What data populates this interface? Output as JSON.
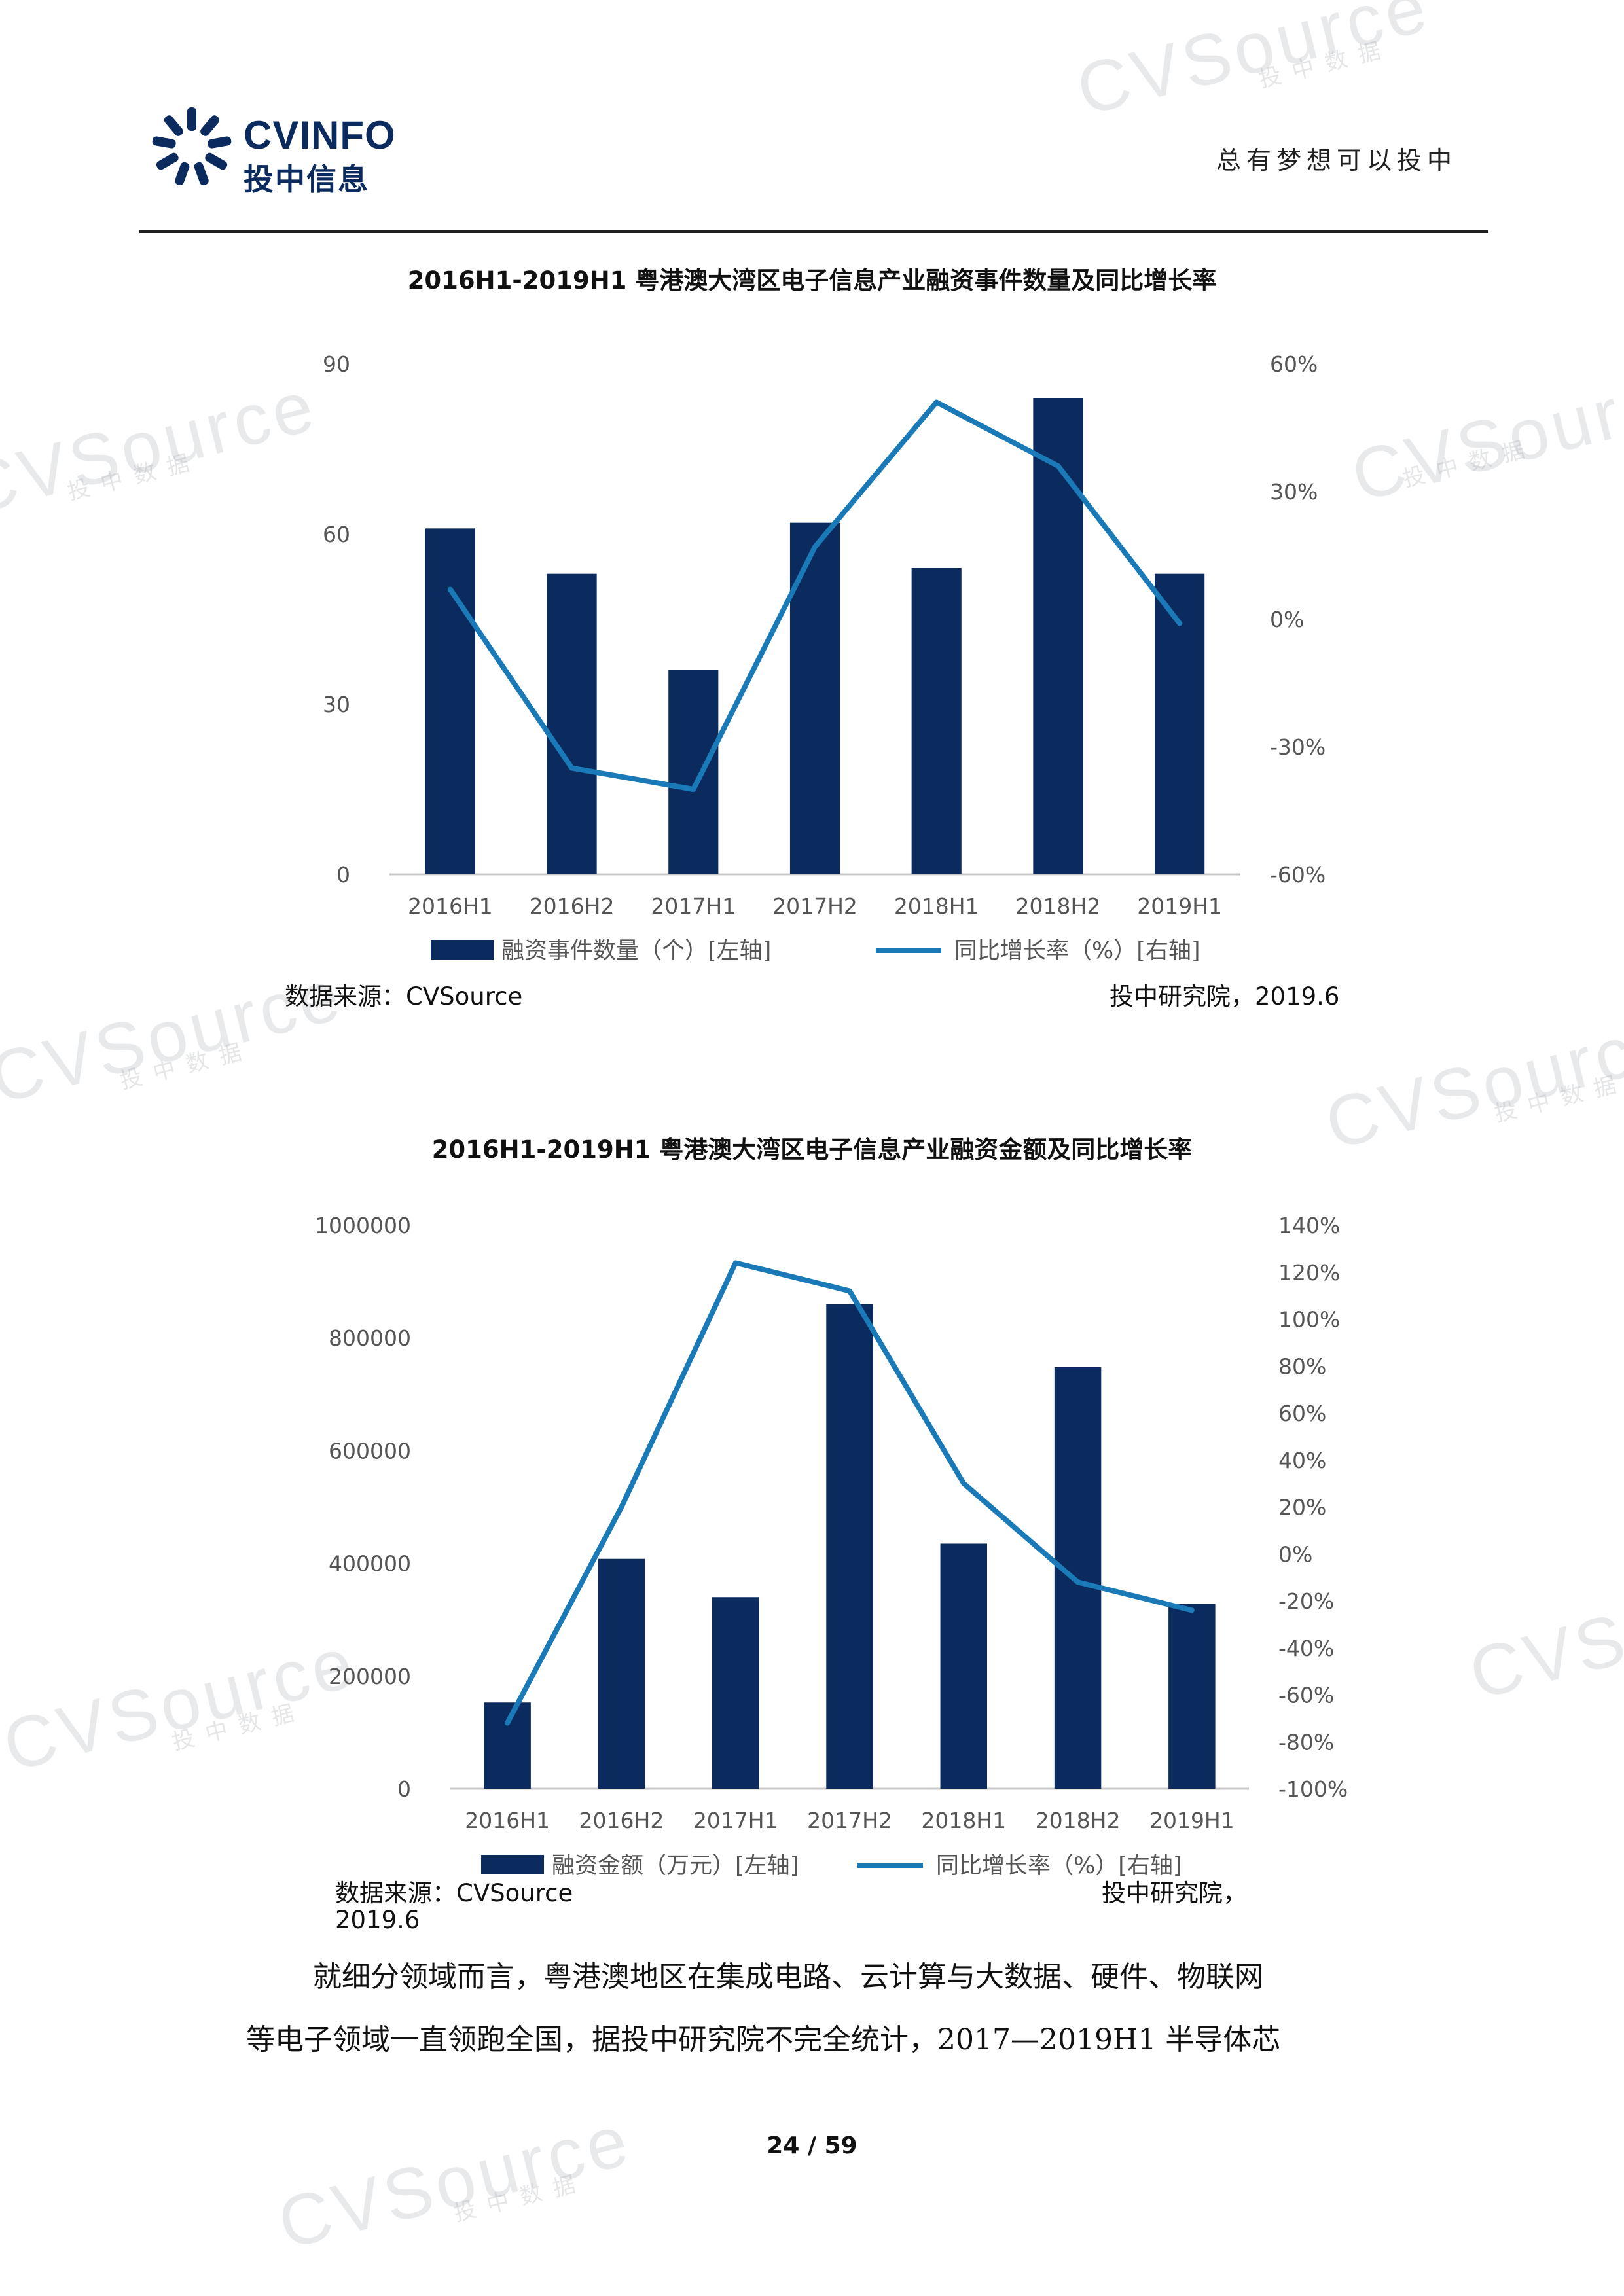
{
  "header": {
    "logo_brand": "CVINFO",
    "logo_cn": "投中信息",
    "slogan": "总有梦想可以投中"
  },
  "watermark": {
    "brand": "CVSource",
    "sub": "投中数据"
  },
  "chart1": {
    "title": "2016H1-2019H1 粤港澳大湾区电子信息产业融资事件数量及同比增长率",
    "source_left": "数据来源：CVSource",
    "source_right": "投中研究院，2019.6"
  },
  "chart2": {
    "title": "2016H1-2019H1 粤港澳大湾区电子信息产业融资金额及同比增长率",
    "source_left": "数据来源：CVSource",
    "source_right": "投中研究院，",
    "source_date": "2019.6"
  },
  "body": {
    "line1": "就细分领域而言，粤港澳地区在集成电路、云计算与大数据、硬件、物联网",
    "line2": "等电子领域一直领跑全国，据投中研究院不完全统计，2017—2019H1 半导体芯"
  },
  "footer": {
    "page": "24 / 59"
  },
  "colors": {
    "bar": "#0b2a5e",
    "line": "#1a7ab8",
    "rule": "#222222"
  },
  "chart_data": [
    {
      "type": "bar",
      "categories": [
        "2016H1",
        "2016H2",
        "2017H1",
        "2017H2",
        "2018H1",
        "2018H2",
        "2019H1"
      ],
      "series": [
        {
          "name": "融资事件数量（个）[左轴]",
          "type": "bar",
          "axis": "left",
          "values": [
            61,
            53,
            36,
            62,
            54,
            84,
            53
          ]
        },
        {
          "name": "同比增长率（%）[右轴]",
          "type": "line",
          "axis": "right",
          "values": [
            7,
            -35,
            -40,
            17,
            51,
            36,
            -1
          ]
        }
      ],
      "y_left": {
        "min": 0,
        "max": 90,
        "ticks": [
          "0",
          "30",
          "60",
          "90"
        ]
      },
      "y_right": {
        "min": -60,
        "max": 60,
        "ticks": [
          "-60%",
          "-30%",
          "0%",
          "30%",
          "60%"
        ]
      },
      "legend": "bottom"
    },
    {
      "type": "bar",
      "categories": [
        "2016H1",
        "2016H2",
        "2017H1",
        "2017H2",
        "2018H1",
        "2018H2",
        "2019H1"
      ],
      "series": [
        {
          "name": "融资金额（万元）[左轴]",
          "type": "bar",
          "axis": "left",
          "values": [
            153000,
            408000,
            340000,
            860000,
            435000,
            748000,
            328000
          ]
        },
        {
          "name": "同比增长率（%）[右轴]",
          "type": "line",
          "axis": "right",
          "values": [
            -72,
            20,
            124,
            112,
            30,
            -12,
            -24
          ]
        }
      ],
      "y_left": {
        "min": 0,
        "max": 1000000,
        "ticks": [
          "0",
          "200000",
          "400000",
          "600000",
          "800000",
          "1000000"
        ]
      },
      "y_right": {
        "min": -100,
        "max": 140,
        "ticks": [
          "-100%",
          "-80%",
          "-60%",
          "-40%",
          "-20%",
          "0%",
          "20%",
          "40%",
          "60%",
          "80%",
          "100%",
          "120%",
          "140%"
        ]
      },
      "legend": "bottom"
    }
  ]
}
